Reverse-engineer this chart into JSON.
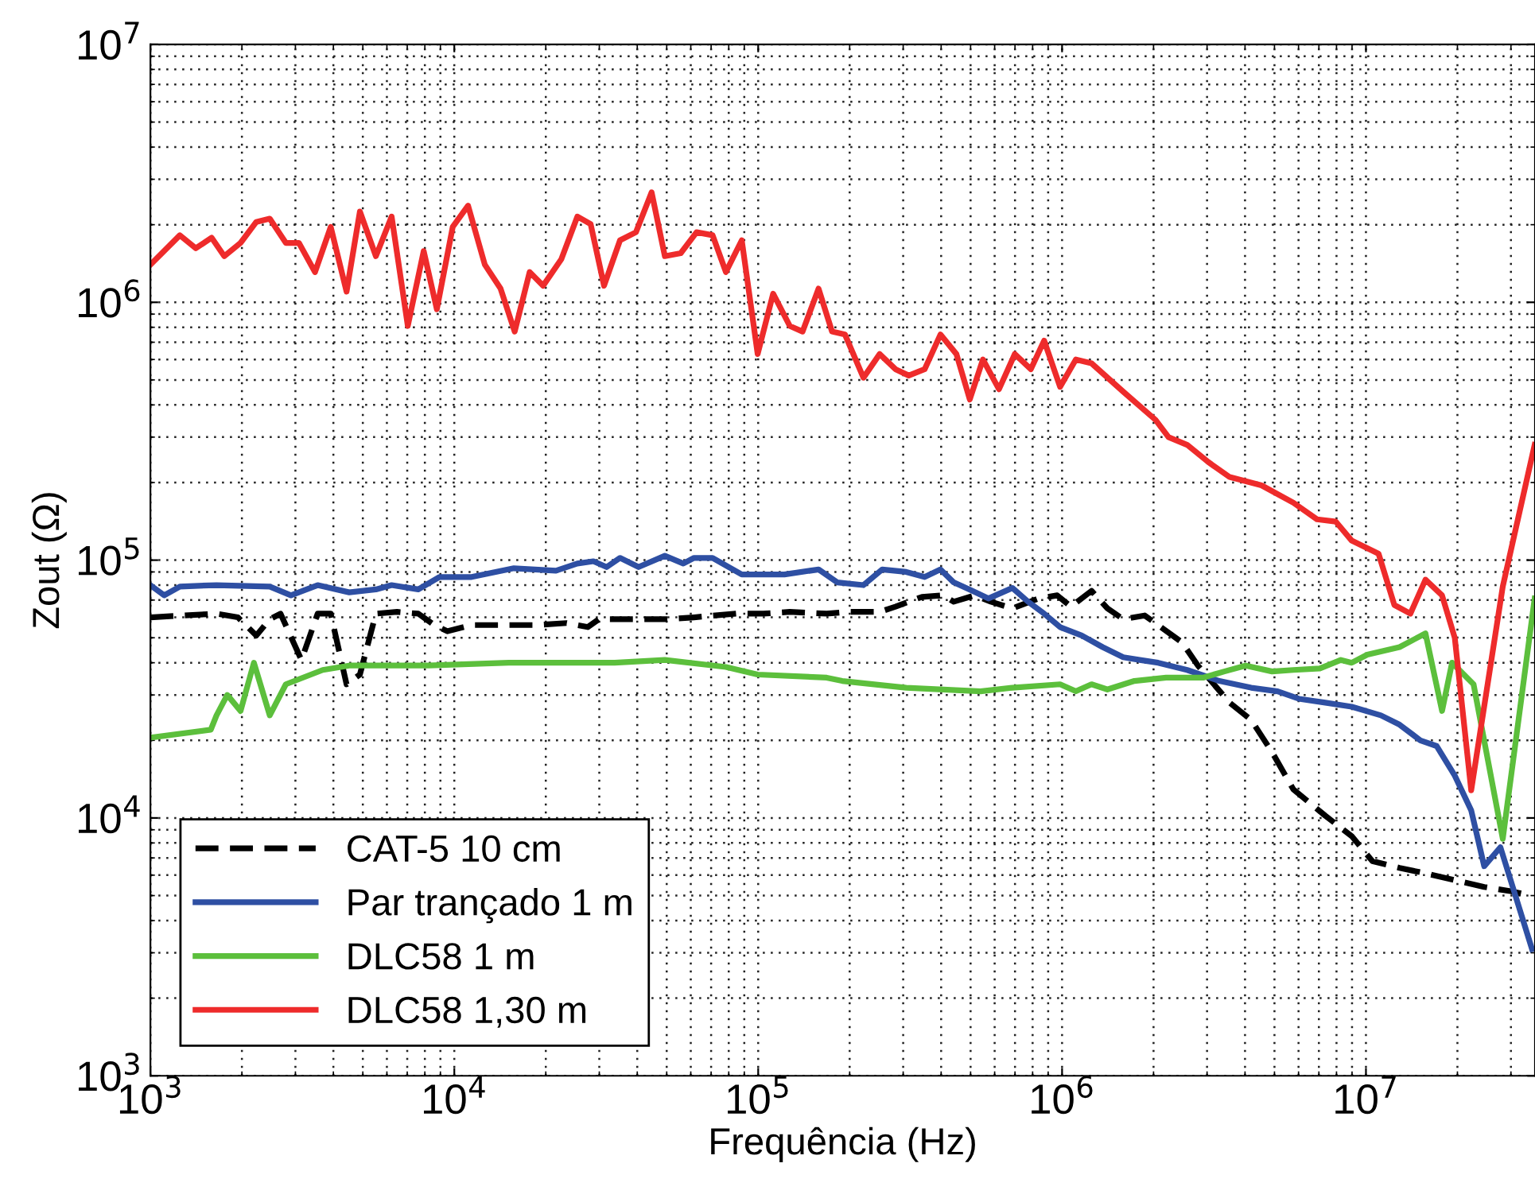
{
  "chart_data": {
    "type": "line",
    "xlabel": "Frequência (Hz)",
    "ylabel": "Zout (Ω)",
    "log": "xy",
    "grid": true,
    "legend": "bottom left",
    "xlim": [
      1000,
      36000000
    ],
    "ylim": [
      1000,
      10000000
    ],
    "xticks": [
      {
        "value": 1000,
        "label": "10$^{3}$"
      },
      {
        "value": 10000,
        "label": "10$^{4}$"
      },
      {
        "value": 100000,
        "label": "10$^{5}$"
      },
      {
        "value": 1000000,
        "label": "10$^{6}$"
      },
      {
        "value": 10000000,
        "label": "10$^{7}$"
      }
    ],
    "yticks": [
      {
        "value": 1000,
        "label": "10$^{3}$"
      },
      {
        "value": 10000,
        "label": "10$^{4}$"
      },
      {
        "value": 100000,
        "label": "10$^{5}$"
      },
      {
        "value": 1000000,
        "label": "10$^{6}$"
      },
      {
        "value": 10000000,
        "label": "10$^{7}$"
      }
    ],
    "series": [
      {
        "name": "CAT-5 10 cm",
        "color": "#000000",
        "line_style": "dashed",
        "x": [
          1000,
          1650,
          1940,
          2230,
          2470,
          2680,
          3140,
          3550,
          3920,
          4420,
          4890,
          5520,
          6480,
          7610,
          8590,
          9490,
          11400,
          14500,
          18400,
          23400,
          27500,
          29900,
          35100,
          50300,
          61500,
          84700,
          104000,
          127000,
          168000,
          197000,
          251000,
          283000,
          346000,
          406000,
          440000,
          517000,
          583000,
          686000,
          838000,
          964000,
          1070000,
          1250000,
          1410000,
          1590000,
          1870000,
          2070000,
          2480000,
          2800000,
          3160000,
          3560000,
          4190000,
          4910000,
          5770000,
          7350000,
          8980000,
          10500000,
          12900000,
          15700000,
          20100000,
          24500000,
          29900000,
          35200000
        ],
        "values": [
          60000,
          62000,
          60000,
          51000,
          59000,
          62000,
          41000,
          62000,
          62000,
          33000,
          36000,
          62000,
          63000,
          62000,
          56000,
          53000,
          56000,
          56000,
          56000,
          57000,
          55000,
          59000,
          59000,
          59000,
          60000,
          62000,
          62000,
          63000,
          62000,
          63000,
          63000,
          66000,
          72000,
          73000,
          69000,
          73000,
          69000,
          65000,
          71000,
          73000,
          66000,
          76000,
          65000,
          59000,
          61000,
          56000,
          48000,
          39000,
          33000,
          28000,
          24000,
          18000,
          12900,
          10200,
          8500,
          6800,
          6400,
          6100,
          5700,
          5400,
          5200,
          5000
        ]
      },
      {
        "name": "Par trançado 1 m",
        "color": "#2e4fa3",
        "line_style": "solid",
        "x": [
          1000,
          1110,
          1250,
          1650,
          2470,
          2900,
          3550,
          4510,
          5520,
          6220,
          7610,
          8930,
          11400,
          15700,
          21600,
          25400,
          28700,
          31700,
          35100,
          40400,
          49300,
          56700,
          61500,
          70800,
          88300,
          104000,
          122000,
          158000,
          182000,
          222000,
          256000,
          307000,
          353000,
          398000,
          440000,
          507000,
          572000,
          686000,
          773000,
          873000,
          985000,
          1160000,
          1360000,
          1590000,
          1800000,
          2070000,
          2580000,
          3290000,
          4190000,
          5120000,
          6010000,
          7350000,
          8980000,
          11200000,
          12900000,
          15100000,
          17100000,
          19600000,
          22200000,
          24500000,
          27700000,
          35200000
        ],
        "values": [
          80000,
          73000,
          79000,
          80000,
          79000,
          73000,
          80000,
          75000,
          77000,
          80000,
          77000,
          86000,
          86000,
          93000,
          91000,
          97000,
          99000,
          94000,
          102000,
          94000,
          104000,
          97000,
          102000,
          102000,
          88000,
          88000,
          88000,
          92000,
          82000,
          80000,
          92000,
          90000,
          86000,
          92000,
          82000,
          76000,
          71000,
          78000,
          69000,
          62000,
          55000,
          51000,
          46000,
          42000,
          41000,
          40000,
          37500,
          34000,
          32000,
          31000,
          29000,
          28000,
          27000,
          25000,
          23000,
          20000,
          19000,
          14600,
          10700,
          6500,
          7700,
          3100
        ]
      },
      {
        "name": "DLC58 1 m",
        "color": "#5cbf3c",
        "line_style": "solid",
        "x": [
          1000,
          1580,
          1650,
          1790,
          1980,
          2190,
          2470,
          2790,
          3690,
          4510,
          8240,
          15100,
          33700,
          49300,
          78300,
          99600,
          168000,
          189000,
          307000,
          539000,
          686000,
          985000,
          1110000,
          1250000,
          1410000,
          1730000,
          2200000,
          2910000,
          3420000,
          4020000,
          4910000,
          5770000,
          7050000,
          8270000,
          8980000,
          10100000,
          12900000,
          15700000,
          17800000,
          19200000,
          22600000,
          28200000,
          35900000
        ],
        "values": [
          20500,
          22000,
          25000,
          30000,
          26000,
          40000,
          25000,
          33000,
          37500,
          39000,
          39000,
          40000,
          40000,
          41000,
          38500,
          36000,
          35000,
          34000,
          32000,
          31000,
          32000,
          33000,
          31000,
          33000,
          31500,
          34000,
          35000,
          35000,
          37000,
          39000,
          37000,
          37500,
          38000,
          41000,
          40000,
          43000,
          46000,
          52000,
          26000,
          40000,
          33000,
          8300,
          71000
        ]
      },
      {
        "name": "DLC58 1,30 m",
        "color": "#ee2b2b",
        "line_style": "solid",
        "x": [
          1000,
          1250,
          1410,
          1590,
          1750,
          1980,
          2230,
          2470,
          2790,
          3080,
          3480,
          3920,
          4420,
          4890,
          5520,
          6220,
          7030,
          7930,
          8760,
          9880,
          11100,
          12600,
          14200,
          15800,
          17700,
          19600,
          22500,
          25400,
          28100,
          31100,
          35100,
          39600,
          44600,
          49300,
          55600,
          62700,
          70800,
          78300,
          88300,
          99600,
          112000,
          127000,
          140000,
          158000,
          175000,
          193000,
          222000,
          251000,
          283000,
          313000,
          353000,
          398000,
          449000,
          497000,
          549000,
          620000,
          699000,
          789000,
          873000,
          985000,
          1110000,
          1250000,
          1590000,
          2030000,
          2240000,
          2580000,
          3030000,
          3560000,
          4530000,
          5770000,
          6900000,
          7960000,
          8980000,
          11000000,
          12400000,
          14000000,
          15700000,
          17800000,
          19600000,
          22200000,
          28200000,
          35900000
        ],
        "values": [
          1400000,
          1820000,
          1620000,
          1780000,
          1510000,
          1700000,
          2050000,
          2110000,
          1700000,
          1700000,
          1310000,
          1960000,
          1100000,
          2250000,
          1510000,
          2150000,
          810000,
          1580000,
          940000,
          1960000,
          2370000,
          1400000,
          1130000,
          770000,
          1310000,
          1160000,
          1470000,
          2150000,
          2010000,
          1160000,
          1740000,
          1870000,
          2670000,
          1510000,
          1550000,
          1870000,
          1820000,
          1310000,
          1740000,
          630000,
          1080000,
          810000,
          770000,
          1130000,
          770000,
          750000,
          510000,
          630000,
          550000,
          520000,
          550000,
          750000,
          630000,
          420000,
          600000,
          460000,
          630000,
          550000,
          710000,
          470000,
          600000,
          580000,
          450000,
          350000,
          300000,
          280000,
          240000,
          210000,
          195000,
          167000,
          144000,
          141000,
          119000,
          106000,
          67000,
          62000,
          84000,
          73000,
          50000,
          12800,
          79000,
          280000
        ]
      }
    ]
  }
}
